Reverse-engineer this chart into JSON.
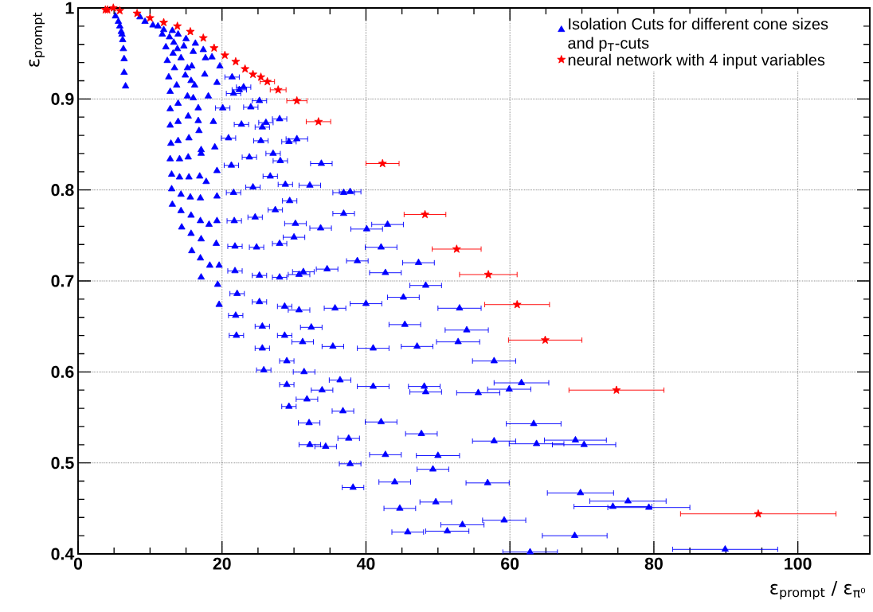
{
  "chart_data": {
    "type": "scatter",
    "xlabel": "ε$_{prompt}$ / ε$_{π⁰}$",
    "ylabel": "ε$_{prompt}$",
    "xlim": [
      0,
      110
    ],
    "ylim": [
      0.4,
      1
    ],
    "xticks": [
      0,
      20,
      40,
      60,
      80,
      100
    ],
    "yticks": [
      0.4,
      0.5,
      0.6,
      0.7,
      0.8,
      0.9,
      1
    ],
    "grid": true,
    "legend": "top right",
    "series": [
      {
        "name": "Isolation Cuts for different cone sizes and p$_{T}$-cuts",
        "color": "#0000ff",
        "marker": "triangle",
        "x": [
          5.2,
          5.6,
          5.8,
          6.0,
          6.1,
          6.2,
          6.3,
          6.4,
          6.4,
          6.6,
          8.6,
          9.3,
          10.4,
          11.1,
          11.9,
          11.7,
          13.1,
          13.9,
          12.7,
          13.3,
          15.0,
          16.3,
          17.4,
          12.2,
          13.8,
          14.7,
          16.0,
          17.7,
          18.6,
          19.7,
          13.2,
          14.3,
          12.4,
          13.4,
          15.2,
          15.8,
          17.6,
          21.4,
          12.6,
          14.9,
          15.7,
          16.2,
          19.3,
          23.0,
          22.4,
          21.6,
          12.8,
          13.7,
          15.2,
          16.0,
          18.1,
          25.2,
          24.0,
          12.8,
          13.9,
          16.7,
          20.1,
          15.3,
          16.7,
          18.8,
          22.7,
          26.1,
          25.6,
          28.0,
          12.8,
          13.9,
          16.8,
          15.4,
          20.9,
          25.4,
          29.3,
          30.4,
          12.9,
          13.9,
          17.1,
          17.1,
          19.0,
          23.8,
          27.1,
          28.1,
          21.3,
          15.3,
          12.8,
          14.1,
          13.0,
          14.1,
          15.4,
          16.9,
          17.8,
          19.3,
          26.7,
          28.8,
          32.2,
          13.0,
          14.3,
          15.6,
          17.0,
          19.3,
          21.6,
          24.3,
          29.4,
          27.4,
          13.1,
          14.3,
          15.7,
          17.0,
          18.2,
          19.3,
          21.7,
          24.6,
          30.2,
          14.4,
          15.7,
          17.1,
          19.2,
          21.8,
          24.8,
          28.0,
          30.0,
          15.8,
          17.0,
          18.3,
          19.6,
          21.8,
          25.2,
          28.0,
          30.7,
          31.3,
          17.1,
          19.4,
          22.1,
          25.2,
          28.7,
          30.7,
          19.6,
          21.9,
          25.6,
          32.4,
          22.0,
          28.7,
          31.2,
          25.6,
          29.0,
          25.8,
          31.4,
          29.0,
          31.8,
          29.3,
          32.1,
          32.2,
          33.8,
          36.9,
          37.8,
          36.9,
          33.7,
          40.1,
          43.0,
          42.1,
          38.8,
          47.3,
          34.6,
          42.7,
          48.3,
          45.2,
          40.0,
          35.7,
          53.0,
          45.4,
          54.0,
          52.8,
          47.1,
          41.0,
          35.4,
          57.8,
          36.4,
          61.6,
          41.0,
          48.1,
          48.3,
          33.9,
          59.9,
          55.6,
          36.8,
          42.1,
          63.3,
          47.7,
          37.6,
          34.4,
          57.8,
          63.7,
          42.7,
          50.0,
          37.8,
          49.3,
          44.0,
          56.9,
          38.2,
          49.7,
          44.7,
          59.2,
          53.4,
          45.8,
          51.3,
          62.8,
          69.1,
          70.3,
          69.8,
          76.4,
          74.3,
          79.3,
          69.0,
          89.9
        ],
        "values": [
          0.991,
          0.985,
          0.98,
          0.974,
          0.971,
          0.965,
          0.955,
          0.944,
          0.929,
          0.914,
          0.99,
          0.985,
          0.981,
          0.98,
          0.976,
          0.971,
          0.975,
          0.971,
          0.968,
          0.962,
          0.966,
          0.961,
          0.954,
          0.957,
          0.955,
          0.958,
          0.952,
          0.945,
          0.946,
          0.936,
          0.95,
          0.945,
          0.942,
          0.934,
          0.934,
          0.936,
          0.927,
          0.924,
          0.924,
          0.926,
          0.92,
          0.915,
          0.918,
          0.913,
          0.91,
          0.906,
          0.908,
          0.915,
          0.903,
          0.901,
          0.903,
          0.898,
          0.891,
          0.889,
          0.895,
          0.89,
          0.89,
          0.881,
          0.876,
          0.875,
          0.872,
          0.874,
          0.869,
          0.878,
          0.871,
          0.875,
          0.865,
          0.857,
          0.857,
          0.854,
          0.853,
          0.856,
          0.851,
          0.854,
          0.844,
          0.84,
          0.847,
          0.836,
          0.84,
          0.832,
          0.827,
          0.836,
          0.834,
          0.834,
          0.817,
          0.814,
          0.814,
          0.815,
          0.809,
          0.821,
          0.815,
          0.806,
          0.805,
          0.801,
          0.795,
          0.792,
          0.791,
          0.793,
          0.797,
          0.803,
          0.788,
          0.778,
          0.784,
          0.777,
          0.772,
          0.766,
          0.762,
          0.766,
          0.766,
          0.77,
          0.763,
          0.759,
          0.752,
          0.746,
          0.741,
          0.738,
          0.737,
          0.741,
          0.748,
          0.733,
          0.725,
          0.717,
          0.717,
          0.711,
          0.706,
          0.704,
          0.707,
          0.71,
          0.704,
          0.696,
          0.686,
          0.677,
          0.672,
          0.668,
          0.674,
          0.662,
          0.65,
          0.649,
          0.64,
          0.64,
          0.633,
          0.626,
          0.612,
          0.602,
          0.6,
          0.586,
          0.57,
          0.562,
          0.544,
          0.52,
          0.829,
          0.797,
          0.798,
          0.774,
          0.758,
          0.757,
          0.762,
          0.737,
          0.722,
          0.72,
          0.713,
          0.709,
          0.695,
          0.682,
          0.675,
          0.67,
          0.67,
          0.652,
          0.646,
          0.633,
          0.628,
          0.626,
          0.628,
          0.612,
          0.591,
          0.588,
          0.584,
          0.584,
          0.578,
          0.58,
          0.581,
          0.577,
          0.557,
          0.545,
          0.543,
          0.532,
          0.527,
          0.518,
          0.524,
          0.521,
          0.509,
          0.508,
          0.499,
          0.493,
          0.479,
          0.478,
          0.473,
          0.457,
          0.45,
          0.437,
          0.432,
          0.424,
          0.425,
          0.402,
          0.525,
          0.52,
          0.467,
          0.458,
          0.452,
          0.451,
          0.42,
          0.405
        ],
        "xerrors": [
          null,
          null,
          null,
          null,
          null,
          null,
          null,
          null,
          null,
          null,
          null,
          null,
          null,
          null,
          null,
          null,
          null,
          null,
          null,
          null,
          null,
          null,
          null,
          null,
          null,
          null,
          null,
          null,
          null,
          null,
          null,
          null,
          null,
          null,
          null,
          null,
          null,
          1,
          null,
          null,
          null,
          null,
          null,
          1,
          1,
          1,
          null,
          null,
          null,
          null,
          null,
          1,
          1,
          null,
          null,
          null,
          1,
          null,
          null,
          null,
          1,
          1,
          1,
          1,
          null,
          null,
          null,
          null,
          1,
          1,
          1,
          1.5,
          null,
          null,
          null,
          null,
          null,
          1,
          1,
          1,
          1,
          null,
          null,
          null,
          null,
          null,
          null,
          null,
          null,
          null,
          1,
          1,
          1.5,
          null,
          null,
          null,
          null,
          null,
          1,
          1,
          1,
          1,
          null,
          null,
          null,
          null,
          null,
          null,
          1,
          1,
          1.5,
          null,
          null,
          null,
          null,
          1,
          1,
          1,
          1.5,
          null,
          null,
          null,
          null,
          1,
          1,
          1,
          1.5,
          1.5,
          null,
          null,
          1,
          1,
          1,
          1.5,
          null,
          1,
          1,
          1.5,
          1,
          1,
          1.5,
          1,
          1,
          1,
          1.5,
          1,
          1.5,
          1,
          1.5,
          1.5,
          1.5,
          1.5,
          1.5,
          1.5,
          1.5,
          2.2,
          2.2,
          2.2,
          1.5,
          2.2,
          1.5,
          2.2,
          2.2,
          2.2,
          2.2,
          1.5,
          3,
          2.2,
          3,
          3,
          2.2,
          2.2,
          1.5,
          3,
          1.5,
          3.8,
          2.2,
          2.2,
          2.2,
          1.5,
          3,
          3,
          1.5,
          2.2,
          3.8,
          2.2,
          1.5,
          1.5,
          3,
          3.8,
          2.2,
          3,
          1.5,
          2.2,
          2.2,
          3,
          1.5,
          2.2,
          2.2,
          3,
          3,
          2.2,
          3,
          3.8,
          4.3,
          4.4,
          4.6,
          5.3,
          5.4,
          5.7,
          4.5,
          7.3
        ]
      },
      {
        "name": "neural network with 4 input variables",
        "color": "#ff0000",
        "marker": "star",
        "x": [
          3.8,
          4.1,
          4.9,
          5.8,
          8.2,
          10.0,
          11.9,
          13.8,
          15.6,
          17.4,
          18.9,
          20.4,
          21.9,
          23.2,
          24.3,
          25.4,
          26.3,
          27.8,
          30.4,
          33.4,
          42.3,
          48.2,
          52.6,
          57.0,
          61.0,
          64.9,
          74.8,
          94.5
        ],
        "values": [
          0.998,
          0.998,
          1.0,
          0.997,
          0.994,
          0.989,
          0.984,
          0.98,
          0.974,
          0.967,
          0.956,
          0.948,
          0.941,
          0.933,
          0.927,
          0.924,
          0.919,
          0.91,
          0.898,
          0.875,
          0.829,
          0.773,
          0.735,
          0.707,
          0.674,
          0.635,
          0.58,
          0.444
        ],
        "xerrors": [
          null,
          null,
          null,
          null,
          null,
          null,
          null,
          null,
          null,
          null,
          null,
          null,
          null,
          null,
          null,
          null,
          1.0,
          1.1,
          1.4,
          1.7,
          2.3,
          2.9,
          3.4,
          4.0,
          4.5,
          5.1,
          6.6,
          10.8
        ]
      }
    ]
  }
}
